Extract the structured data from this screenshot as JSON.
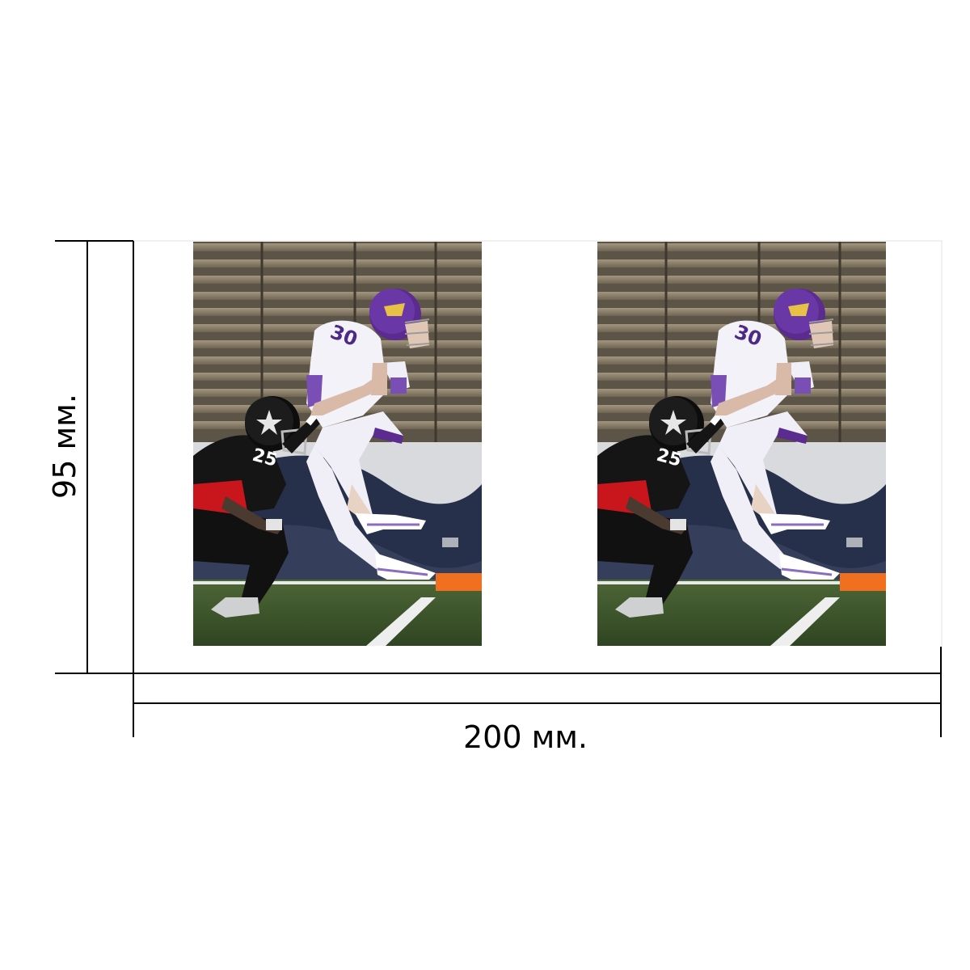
{
  "dimensions": {
    "height_label": "95 мм.",
    "width_label": "200 мм."
  },
  "panels": [
    {
      "kind": "photo",
      "subject": "american-football-catch-tackle",
      "jersey_number": "25"
    },
    {
      "kind": "photo",
      "subject": "american-football-catch-tackle",
      "jersey_number": "25"
    }
  ],
  "colors": {
    "line": "#000000",
    "sheet_edge": "#cfcfcf",
    "bleachers": "#8c7f6c",
    "field": "#3f5a2e",
    "offense_uniform": "#f0eef6",
    "offense_trim": "#5b2b8f",
    "defense_jersey": "#151515",
    "defense_pants": "#c8161c",
    "wall_dark": "#27304a",
    "wall_light": "#d8dade",
    "pylon": "#f07020"
  }
}
